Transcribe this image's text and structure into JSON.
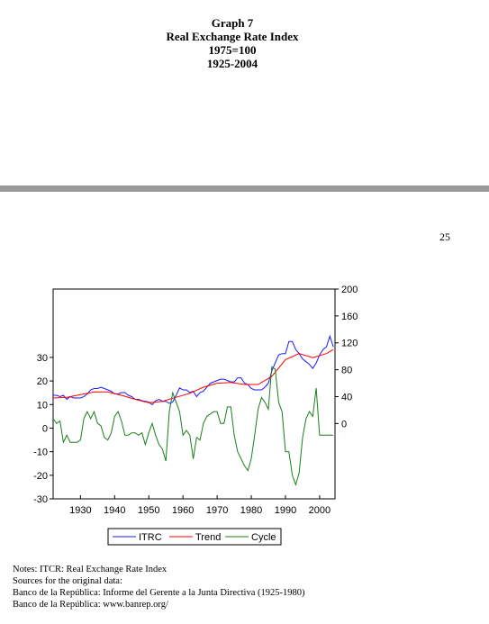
{
  "header": {
    "lines": [
      "Graph 7",
      "Real Exchange Rate Index",
      "1975=100",
      "1925-2004"
    ]
  },
  "page_number": "25",
  "notes": [
    "Notes: ITCR: Real Exchange Rate Index",
    "Sources for the original data:",
    "Banco de la República: Informe del Gerente a la Junta Directiva (1925-1980)",
    "Banco de la República: www.banrep.org/"
  ],
  "chart_data": {
    "type": "line",
    "x_ticks": [
      1930,
      1940,
      1950,
      1960,
      1970,
      1980,
      1990,
      2000
    ],
    "xlim": [
      1922,
      2004.5
    ],
    "left_axis": {
      "ticks": [
        30,
        20,
        10,
        0,
        -10,
        -20,
        -30
      ],
      "ylim": [
        -30,
        59
      ]
    },
    "right_axis": {
      "ticks": [
        200,
        160,
        120,
        80,
        40,
        0
      ],
      "ylim": [
        -112,
        200
      ]
    },
    "grid": false,
    "legend_position": "bottom",
    "colors": {
      "ITRC": "#1a1aff",
      "Trend": "#ff0000",
      "Cycle": "#1a7f1a"
    },
    "series": [
      {
        "name": "ITRC",
        "axis": "right",
        "x": [
          1922,
          1923,
          1924,
          1925,
          1926,
          1927,
          1928,
          1929,
          1930,
          1931,
          1932,
          1933,
          1934,
          1935,
          1936,
          1937,
          1938,
          1939,
          1940,
          1941,
          1942,
          1943,
          1944,
          1945,
          1946,
          1947,
          1948,
          1949,
          1950,
          1951,
          1952,
          1953,
          1954,
          1955,
          1956,
          1957,
          1958,
          1959,
          1960,
          1961,
          1962,
          1963,
          1964,
          1965,
          1966,
          1967,
          1968,
          1969,
          1970,
          1971,
          1972,
          1973,
          1974,
          1975,
          1976,
          1977,
          1978,
          1979,
          1980,
          1981,
          1982,
          1983,
          1984,
          1985,
          1986,
          1987,
          1988,
          1989,
          1990,
          1991,
          1992,
          1993,
          1994,
          1995,
          1996,
          1997,
          1998,
          1999,
          2000,
          2001,
          2002,
          2003,
          2004
        ],
        "y": [
          42,
          42,
          40,
          42,
          36,
          40,
          38,
          38,
          38,
          40,
          44,
          50,
          52,
          52,
          54,
          52,
          50,
          48,
          44,
          44,
          46,
          46,
          42,
          40,
          36,
          36,
          34,
          33,
          32,
          28,
          34,
          36,
          33,
          33,
          30,
          32,
          42,
          53,
          50,
          50,
          46,
          48,
          40,
          46,
          48,
          54,
          60,
          62,
          64,
          66,
          66,
          64,
          62,
          62,
          68,
          68,
          60,
          58,
          52,
          50,
          50,
          50,
          54,
          60,
          78,
          90,
          102,
          104,
          104,
          122,
          122,
          110,
          104,
          96,
          92,
          88,
          82,
          90,
          102,
          110,
          114,
          130,
          114
        ]
      },
      {
        "name": "Trend",
        "axis": "right",
        "x": [
          1922,
          1926,
          1930,
          1934,
          1938,
          1942,
          1946,
          1950,
          1954,
          1958,
          1962,
          1966,
          1970,
          1974,
          1978,
          1982,
          1986,
          1990,
          1994,
          1998,
          2002,
          2004
        ],
        "y": [
          38,
          39,
          43,
          47,
          47,
          42,
          36,
          31,
          33,
          39,
          45,
          54,
          60,
          61,
          58,
          58,
          70,
          95,
          104,
          98,
          104,
          110
        ]
      },
      {
        "name": "Cycle",
        "axis": "left",
        "x": [
          1922,
          1923,
          1924,
          1925,
          1926,
          1927,
          1928,
          1929,
          1930,
          1931,
          1932,
          1933,
          1934,
          1935,
          1936,
          1937,
          1938,
          1939,
          1940,
          1941,
          1942,
          1943,
          1944,
          1945,
          1946,
          1947,
          1948,
          1949,
          1950,
          1951,
          1952,
          1953,
          1954,
          1955,
          1956,
          1957,
          1958,
          1959,
          1960,
          1961,
          1962,
          1963,
          1964,
          1965,
          1966,
          1967,
          1968,
          1969,
          1970,
          1971,
          1972,
          1973,
          1974,
          1975,
          1976,
          1977,
          1978,
          1979,
          1980,
          1981,
          1982,
          1983,
          1984,
          1985,
          1986,
          1987,
          1988,
          1989,
          1990,
          1991,
          1992,
          1993,
          1994,
          1995,
          1996,
          1997,
          1998,
          1999,
          2000,
          2001,
          2002,
          2003,
          2004
        ],
        "y": [
          4,
          2,
          3,
          -6,
          -3,
          -6,
          -6,
          -6,
          -5,
          4,
          7,
          4,
          7,
          2,
          1,
          -4,
          -5,
          -2,
          5,
          7,
          3,
          -3,
          -3,
          -2,
          -2,
          -3,
          -2,
          -7,
          -2,
          2,
          -3,
          -7,
          -9,
          -14,
          7,
          15,
          11,
          7,
          -3,
          -1,
          -3,
          -13,
          -4,
          -5,
          2,
          5,
          6,
          7,
          7,
          2,
          2,
          9,
          9,
          -3,
          -10,
          -13,
          -16,
          -18,
          -13,
          -3,
          8,
          13,
          11,
          8,
          26,
          25,
          11,
          7,
          -10,
          -10,
          -20,
          -24,
          -19,
          -4,
          4,
          7,
          5,
          17,
          -3,
          -3,
          -3,
          -3,
          -3
        ]
      }
    ]
  }
}
